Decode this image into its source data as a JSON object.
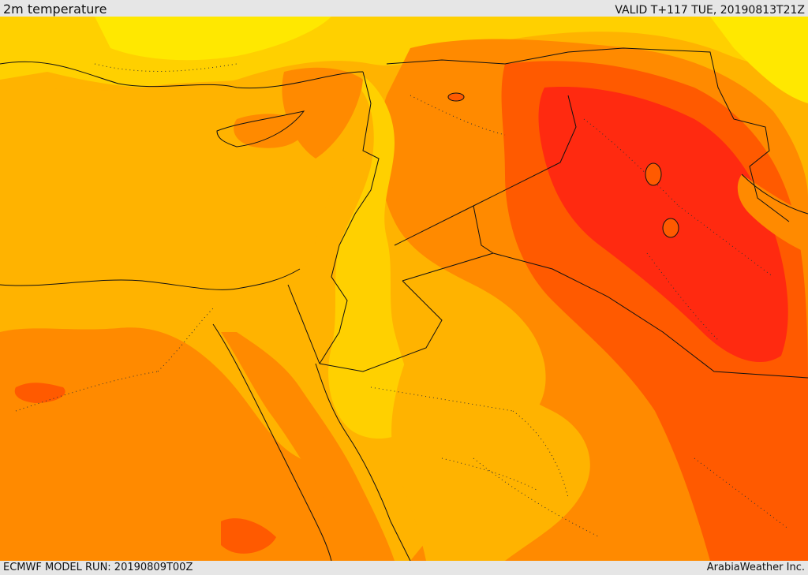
{
  "header": {
    "title": "2m temperature",
    "valid": "VALID T+117 TUE, 20190813T21Z"
  },
  "footer": {
    "model_run": "ECMWF MODEL RUN: 20190809T00Z",
    "credit": "ArabiaWeather Inc."
  },
  "colors": {
    "base": "#ffb300",
    "warm": "#ff8a00",
    "hot": "#ff5a00",
    "hottest": "#ff2a10",
    "cool": "#ffd000",
    "coolest": "#ffe800",
    "border": "#111111"
  }
}
